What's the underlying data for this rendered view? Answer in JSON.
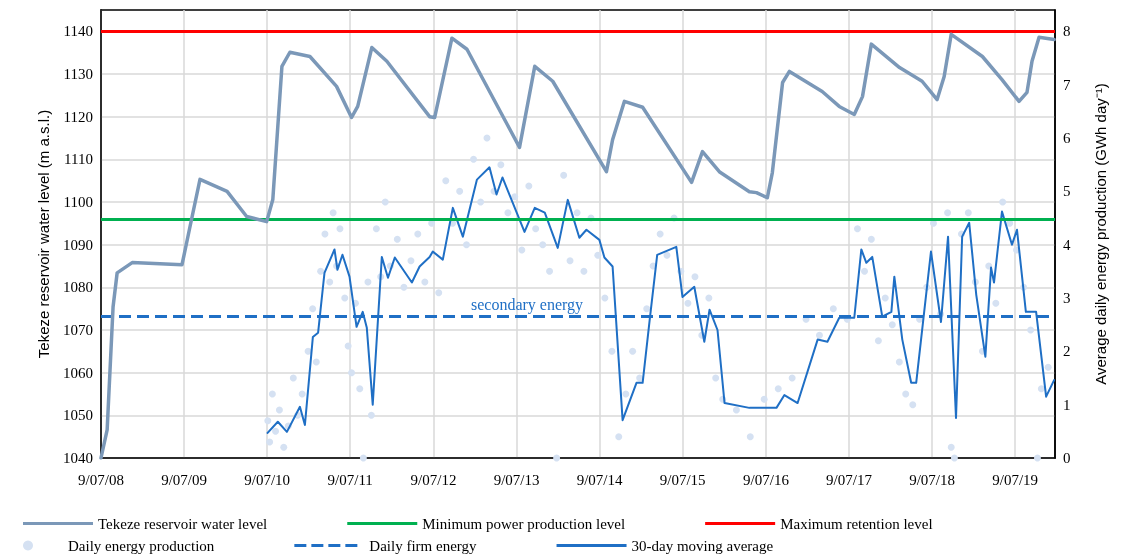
{
  "chart_data": {
    "type": "line",
    "xlabel": null,
    "ylabel": "Tekeze reservoir water level (m a.s.l.)",
    "y2label": "Average daily energy production (GWh day⁻¹)",
    "xlim": [
      "2008-07-09",
      "2019-12-31"
    ],
    "xticks": [
      {
        "value": "2008-07-09",
        "label": "9/07/08"
      },
      {
        "value": "2009-07-09",
        "label": "9/07/09"
      },
      {
        "value": "2010-07-09",
        "label": "9/07/10"
      },
      {
        "value": "2011-07-09",
        "label": "9/07/11"
      },
      {
        "value": "2012-07-09",
        "label": "9/07/12"
      },
      {
        "value": "2013-07-09",
        "label": "9/07/13"
      },
      {
        "value": "2014-07-09",
        "label": "9/07/14"
      },
      {
        "value": "2015-07-09",
        "label": "9/07/15"
      },
      {
        "value": "2016-07-09",
        "label": "9/07/16"
      },
      {
        "value": "2017-07-09",
        "label": "9/07/17"
      },
      {
        "value": "2018-07-09",
        "label": "9/07/18"
      },
      {
        "value": "2019-07-09",
        "label": "9/07/19"
      }
    ],
    "ylim": [
      1040,
      1145
    ],
    "yticks": [
      1040,
      1050,
      1060,
      1070,
      1080,
      1090,
      1100,
      1110,
      1120,
      1130,
      1140
    ],
    "y2lim": [
      0,
      8.4
    ],
    "y2ticks": [
      0,
      1,
      2,
      3,
      4,
      5,
      6,
      7,
      8
    ],
    "grid": true,
    "legend": "bottom",
    "marker": "none",
    "line_style": "solid",
    "series": [
      {
        "name": "Tekeze reservoir water level",
        "color": "#7b98b8",
        "x": [
          "2008-07-09",
          "2008-08-05",
          "2008-08-31",
          "2008-09-18",
          "2008-11-23",
          "2009-06-30",
          "2009-08-04",
          "2009-09-17",
          "2010-01-14",
          "2010-04-10",
          "2010-07-07",
          "2010-08-03",
          "2010-09-12",
          "2010-10-17",
          "2011-01-13",
          "2011-05-10",
          "2011-07-15",
          "2011-08-11",
          "2011-10-12",
          "2011-12-17",
          "2012-06-22",
          "2012-07-14",
          "2012-09-28",
          "2012-12-03",
          "2013-07-22",
          "2013-09-27",
          "2013-12-15",
          "2014-08-08",
          "2014-09-04",
          "2014-10-26",
          "2015-01-14",
          "2015-08-17",
          "2015-10-04",
          "2015-12-17",
          "2016-04-27",
          "2016-05-28",
          "2016-07-15",
          "2016-08-06",
          "2016-09-20",
          "2016-10-20",
          "2017-03-13",
          "2017-05-27",
          "2017-08-01",
          "2017-09-06",
          "2017-10-15",
          "2018-02-16",
          "2018-05-26",
          "2018-07-31",
          "2018-08-31",
          "2018-10-01",
          "2019-02-15",
          "2019-05-12",
          "2019-07-26",
          "2019-08-30",
          "2019-09-21",
          "2019-10-22",
          "2019-12-27"
        ],
        "values": [
          1040,
          1046.6,
          1075.4,
          1083.4,
          1085.8,
          1085.3,
          1094.2,
          1105.3,
          1102.5,
          1096.6,
          1095.4,
          1100.6,
          1131.8,
          1135.1,
          1134.1,
          1127.1,
          1119.8,
          1122.4,
          1136.2,
          1133,
          1120,
          1119.8,
          1138.4,
          1135.8,
          1112.8,
          1131.8,
          1128.3,
          1107.1,
          1114.6,
          1123.6,
          1122.2,
          1104.6,
          1111.8,
          1107.1,
          1102.4,
          1102.2,
          1101,
          1106.9,
          1128,
          1130.6,
          1125.9,
          1122.4,
          1120.5,
          1124.7,
          1137,
          1131.5,
          1128.3,
          1124,
          1129.4,
          1139.3,
          1134.1,
          1128.7,
          1123.6,
          1125.7,
          1133,
          1138.6,
          1138.1
        ]
      },
      {
        "name": "Daily energy production",
        "type": "scatter",
        "axis": "y2",
        "color": "#d5e1f2",
        "marker": "circle",
        "x": [
          "2010-07-12",
          "2010-07-20",
          "2010-08-01",
          "2010-08-15",
          "2010-09-01",
          "2010-09-20",
          "2010-10-10",
          "2010-11-01",
          "2010-11-20",
          "2010-12-10",
          "2011-01-05",
          "2011-01-25",
          "2011-02-10",
          "2011-03-01",
          "2011-03-20",
          "2011-04-10",
          "2011-04-25",
          "2011-05-10",
          "2011-05-25",
          "2011-06-15",
          "2011-06-30",
          "2011-07-15",
          "2011-08-01",
          "2011-08-20",
          "2011-09-05",
          "2011-09-25",
          "2011-10-10",
          "2011-11-01",
          "2011-11-20",
          "2011-12-10",
          "2012-01-01",
          "2012-02-01",
          "2012-03-01",
          "2012-04-01",
          "2012-05-01",
          "2012-06-01",
          "2012-07-01",
          "2012-08-01",
          "2012-09-01",
          "2012-10-01",
          "2012-11-01",
          "2012-12-01",
          "2013-01-01",
          "2013-02-01",
          "2013-03-01",
          "2013-04-01",
          "2013-05-01",
          "2013-06-01",
          "2013-07-01",
          "2013-08-01",
          "2013-09-01",
          "2013-10-01",
          "2013-11-01",
          "2013-12-01",
          "2014-01-01",
          "2014-02-01",
          "2014-03-01",
          "2014-04-01",
          "2014-05-01",
          "2014-06-01",
          "2014-07-01",
          "2014-08-01",
          "2014-09-01",
          "2014-10-01",
          "2014-11-01",
          "2014-12-01",
          "2015-01-01",
          "2015-02-01",
          "2015-03-01",
          "2015-04-01",
          "2015-05-01",
          "2015-06-01",
          "2015-07-01",
          "2015-08-01",
          "2015-09-01",
          "2015-10-01",
          "2015-11-01",
          "2015-12-01",
          "2016-01-01",
          "2016-03-01",
          "2016-05-01",
          "2016-07-01",
          "2016-09-01",
          "2016-11-01",
          "2017-01-01",
          "2017-03-01",
          "2017-05-01",
          "2017-07-01",
          "2017-08-15",
          "2017-09-15",
          "2017-10-15",
          "2017-11-15",
          "2017-12-15",
          "2018-01-15",
          "2018-02-15",
          "2018-03-15",
          "2018-04-15",
          "2018-05-15",
          "2018-06-15",
          "2018-07-15",
          "2018-08-15",
          "2018-09-15",
          "2018-10-01",
          "2018-10-15",
          "2018-11-15",
          "2018-12-15",
          "2019-01-15",
          "2019-02-15",
          "2019-03-15",
          "2019-04-15",
          "2019-05-15",
          "2019-06-15",
          "2019-07-15",
          "2019-08-15",
          "2019-09-15",
          "2019-10-15",
          "2019-11-01",
          "2019-12-01"
        ],
        "values": [
          0.7,
          0.3,
          1.2,
          0.5,
          0.9,
          0.2,
          0.6,
          1.5,
          0.8,
          1.2,
          2.0,
          2.8,
          1.8,
          3.5,
          4.2,
          3.3,
          4.6,
          3.6,
          4.3,
          3.0,
          2.1,
          1.6,
          2.9,
          1.3,
          0.0,
          3.3,
          0.8,
          4.3,
          3.4,
          4.8,
          3.6,
          4.1,
          3.2,
          3.7,
          4.2,
          3.3,
          4.4,
          3.1,
          5.2,
          4.4,
          5.0,
          4.0,
          5.6,
          4.8,
          6.0,
          5.0,
          5.5,
          4.6,
          4.9,
          3.9,
          5.1,
          4.3,
          4.0,
          3.5,
          0.0,
          5.3,
          3.7,
          4.6,
          3.5,
          4.5,
          3.8,
          3.0,
          2.0,
          0.4,
          1.2,
          2.0,
          1.5,
          2.8,
          3.6,
          4.2,
          3.8,
          4.5,
          3.5,
          2.9,
          3.4,
          2.3,
          3.0,
          1.5,
          1.1,
          0.9,
          0.4,
          1.1,
          1.3,
          1.5,
          2.6,
          2.3,
          2.8,
          2.6,
          4.3,
          3.5,
          4.1,
          2.2,
          3.0,
          2.5,
          1.8,
          1.2,
          1.0,
          2.6,
          3.2,
          4.4,
          2.7,
          4.6,
          0.2,
          0.0,
          4.2,
          4.6,
          3.3,
          2.0,
          3.6,
          2.9,
          4.8,
          4.4,
          3.9,
          3.2,
          2.4,
          0.0,
          1.3,
          1.7
        ]
      },
      {
        "name": "30-day moving average",
        "type": "line",
        "axis": "y2",
        "color": "#1f6fc5",
        "x": [
          "2010-07-11",
          "2010-08-25",
          "2010-10-04",
          "2010-11-30",
          "2010-12-22",
          "2011-01-26",
          "2011-02-18",
          "2011-03-18",
          "2011-05-01",
          "2011-05-14",
          "2011-06-05",
          "2011-07-06",
          "2011-08-06",
          "2011-09-02",
          "2011-09-20",
          "2011-10-16",
          "2011-11-25",
          "2011-12-22",
          "2012-01-21",
          "2012-04-05",
          "2012-05-09",
          "2012-06-22",
          "2012-07-06",
          "2012-08-19",
          "2012-10-02",
          "2012-11-15",
          "2013-01-16",
          "2013-03-12",
          "2013-04-12",
          "2013-05-08",
          "2013-08-13",
          "2013-09-27",
          "2013-11-10",
          "2014-01-06",
          "2014-02-19",
          "2014-04-11",
          "2014-05-12",
          "2014-07-08",
          "2014-07-30",
          "2014-09-04",
          "2014-10-18",
          "2014-12-18",
          "2015-01-14",
          "2015-02-14",
          "2015-03-19",
          "2015-06-11",
          "2015-07-08",
          "2015-08-29",
          "2015-10-12",
          "2015-11-04",
          "2015-12-09",
          "2016-01-09",
          "2016-04-27",
          "2016-08-24",
          "2016-09-28",
          "2016-11-25",
          "2017-02-21",
          "2017-04-05",
          "2017-05-27",
          "2017-08-01",
          "2017-09-01",
          "2017-09-23",
          "2017-10-19",
          "2017-12-02",
          "2018-01-11",
          "2018-01-24",
          "2018-02-28",
          "2018-04-08",
          "2018-04-30",
          "2018-07-04",
          "2018-08-17",
          "2018-09-17",
          "2018-10-22",
          "2018-11-18",
          "2018-12-19",
          "2019-01-19",
          "2019-02-28",
          "2019-03-25",
          "2019-04-07",
          "2019-05-12",
          "2019-06-25",
          "2019-07-17",
          "2019-08-25",
          "2019-10-09",
          "2019-11-22",
          "2019-12-27"
        ],
        "values": [
          0.47,
          0.68,
          0.49,
          0.96,
          0.62,
          2.27,
          2.35,
          3.47,
          3.91,
          3.53,
          3.81,
          3.4,
          2.46,
          2.74,
          2.44,
          1.0,
          3.77,
          3.38,
          3.76,
          3.29,
          3.59,
          3.77,
          3.87,
          3.72,
          4.69,
          4.15,
          5.22,
          5.45,
          4.94,
          5.26,
          4.24,
          4.69,
          4.6,
          3.94,
          4.84,
          4.13,
          4.28,
          4.09,
          3.76,
          3.59,
          0.71,
          1.41,
          1.41,
          2.59,
          3.81,
          3.96,
          3.02,
          3.21,
          2.18,
          2.78,
          2.4,
          1.03,
          0.94,
          0.94,
          1.18,
          1.03,
          2.22,
          2.18,
          2.63,
          2.63,
          3.91,
          3.66,
          3.77,
          2.65,
          2.74,
          3.4,
          2.22,
          1.41,
          1.41,
          3.87,
          2.55,
          4.15,
          0.75,
          4.15,
          4.41,
          3.06,
          1.9,
          3.57,
          3.29,
          4.62,
          4.0,
          4.28,
          2.74,
          2.74,
          1.15,
          1.46
        ]
      }
    ],
    "ref_lines": [
      {
        "axis": "y",
        "value": 1096,
        "label": "Minimum power production level",
        "color": "#00b050",
        "line_style": "solid"
      },
      {
        "axis": "y",
        "value": 1140,
        "label": "Maximum retention level",
        "color": "#ff0000",
        "line_style": "solid"
      },
      {
        "axis": "y2",
        "value": 2.65,
        "label": "Daily firm energy",
        "color": "#1f6fc5",
        "line_style": "dashed"
      }
    ],
    "annotations": [
      "secondary energy"
    ]
  }
}
